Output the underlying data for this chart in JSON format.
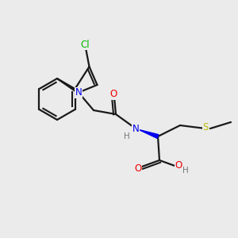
{
  "background_color": "#ebebeb",
  "bond_color": "#1a1a1a",
  "atom_colors": {
    "Cl": "#00bb00",
    "N": "#0000ee",
    "O": "#ee0000",
    "S": "#bbbb00",
    "H": "#777777",
    "C": "#1a1a1a"
  },
  "figsize": [
    3.0,
    3.0
  ],
  "dpi": 100
}
